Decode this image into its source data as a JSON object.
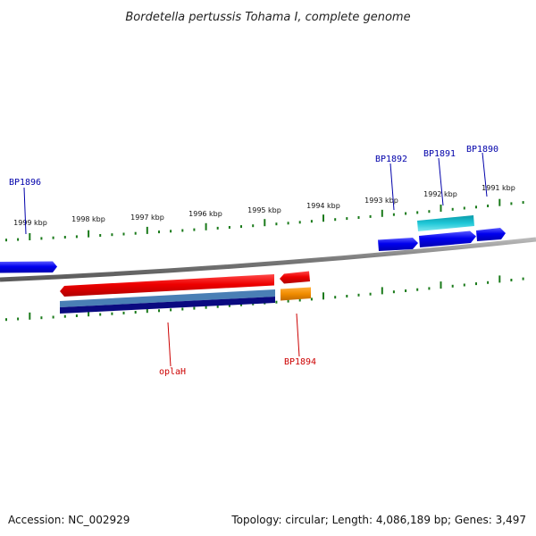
{
  "title": "Bordetella pertussis Tohama I, complete genome",
  "accession": "Accession: NC_002929",
  "summary": "Topology: circular; Length: 4,086,189 bp; Genes: 3,497",
  "scale_labels": [
    "1999 kbp",
    "1998 kbp",
    "1997 kbp",
    "1996 kbp",
    "1995 kbp",
    "1994 kbp",
    "1993 kbp",
    "1992 kbp",
    "1991 kbp"
  ],
  "gene_labels": {
    "bp1896": "BP1896",
    "bp1892": "BP1892",
    "bp1891": "BP1891",
    "bp1890": "BP1890",
    "oplah": "oplaH",
    "bp1894": "BP1894"
  },
  "colors": {
    "forward_gene": "#0000ee",
    "reverse_gene": "#ee0000",
    "cds_light": "#4a7fb5",
    "cds_dark": "#000080",
    "cds_cyan": "#10b8c8",
    "cds_orange": "#f08c00",
    "tick": "#1a7a1a",
    "backbone": "#808080",
    "label_forward": "#0000aa",
    "label_reverse": "#cc0000"
  }
}
